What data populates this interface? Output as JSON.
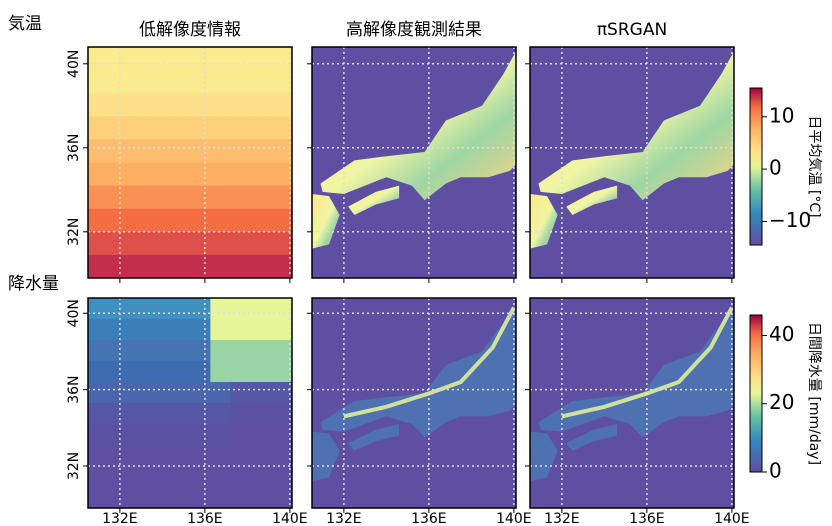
{
  "row_labels": [
    "気温",
    "降水量"
  ],
  "column_titles": [
    "低解像度情報",
    "高解像度観測結果",
    "πSRGAN"
  ],
  "map_axes": {
    "xlim": [
      130.5,
      140.1
    ],
    "ylim": [
      29.8,
      40.8
    ],
    "xticks": [
      {
        "value": 132,
        "label": "132E"
      },
      {
        "value": 136,
        "label": "136E"
      },
      {
        "value": 140,
        "label": "140E"
      }
    ],
    "yticks": [
      {
        "value": 32,
        "label": "32N"
      },
      {
        "value": 36,
        "label": "36N"
      },
      {
        "value": 40,
        "label": "40N"
      }
    ]
  },
  "colorbars": [
    {
      "label": "日平均気温 [°C]",
      "lim": [
        -14.5,
        15.5
      ],
      "ticks": [
        {
          "value": -10,
          "label": "−10"
        },
        0,
        10
      ]
    },
    {
      "label": "日間降水量 [mm/day]",
      "lim": [
        0,
        46
      ],
      "ticks": [
        0,
        20,
        40
      ]
    }
  ]
}
